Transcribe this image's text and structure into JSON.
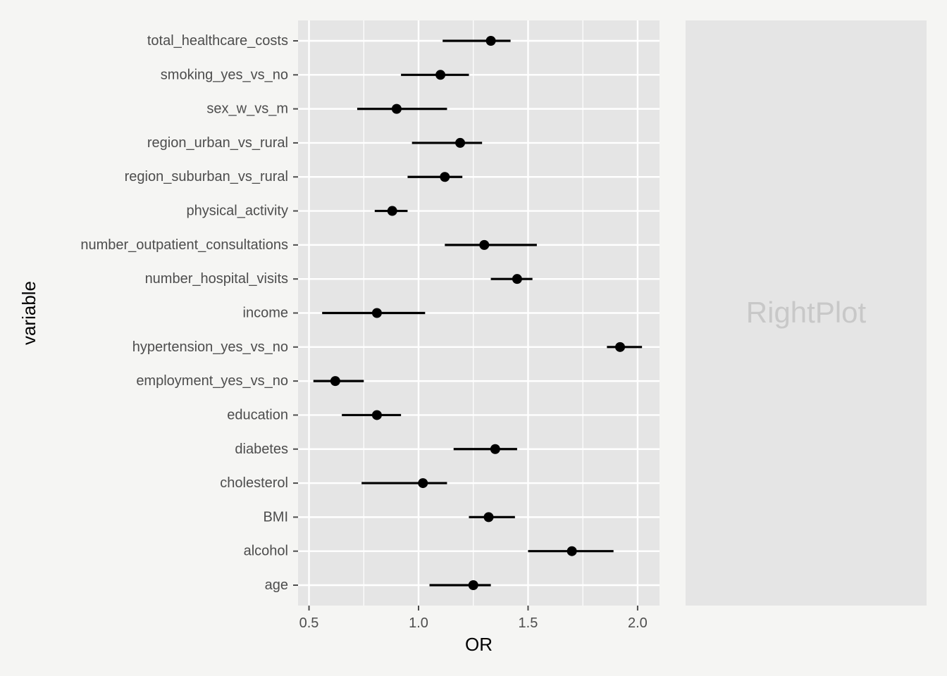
{
  "chart_data": [
    {
      "type": "scatter",
      "subtype": "forest-plot",
      "title": "",
      "xlabel": "OR",
      "ylabel": "variable",
      "xlim": [
        0.45,
        2.1
      ],
      "x_ticks": [
        0.5,
        1.0,
        1.5,
        2.0
      ],
      "x_tick_labels": [
        "0.5",
        "1.0",
        "1.5",
        "2.0"
      ],
      "grid": true,
      "legend": "none",
      "categories": [
        "total_healthcare_costs",
        "smoking_yes_vs_no",
        "sex_w_vs_m",
        "region_urban_vs_rural",
        "region_suburban_vs_rural",
        "physical_activity",
        "number_outpatient_consultations",
        "number_hospital_visits",
        "income",
        "hypertension_yes_vs_no",
        "employment_yes_vs_no",
        "education",
        "diabetes",
        "cholesterol",
        "BMI",
        "alcohol",
        "age"
      ],
      "estimates": [
        1.33,
        1.1,
        0.9,
        1.19,
        1.12,
        0.88,
        1.3,
        1.45,
        0.81,
        1.92,
        0.62,
        0.81,
        1.35,
        1.02,
        1.32,
        1.7,
        1.25
      ],
      "lower": [
        1.11,
        0.92,
        0.72,
        0.97,
        0.95,
        0.8,
        1.12,
        1.33,
        0.56,
        1.86,
        0.52,
        0.65,
        1.16,
        0.74,
        1.23,
        1.5,
        1.05
      ],
      "upper": [
        1.42,
        1.23,
        1.13,
        1.29,
        1.2,
        0.95,
        1.54,
        1.52,
        1.03,
        2.02,
        0.75,
        0.92,
        1.45,
        1.13,
        1.44,
        1.89,
        1.33
      ],
      "colors": {
        "panel": "#e5e5e5",
        "grid": "#ffffff",
        "point": "#000000",
        "errorbar": "#000000",
        "tick": "#4d4d4d",
        "background": "#f5f5f3"
      }
    },
    {
      "type": "placeholder",
      "label": "RightPlot",
      "colors": {
        "panel": "#e5e5e5",
        "text": "#c8c8c8"
      }
    }
  ]
}
